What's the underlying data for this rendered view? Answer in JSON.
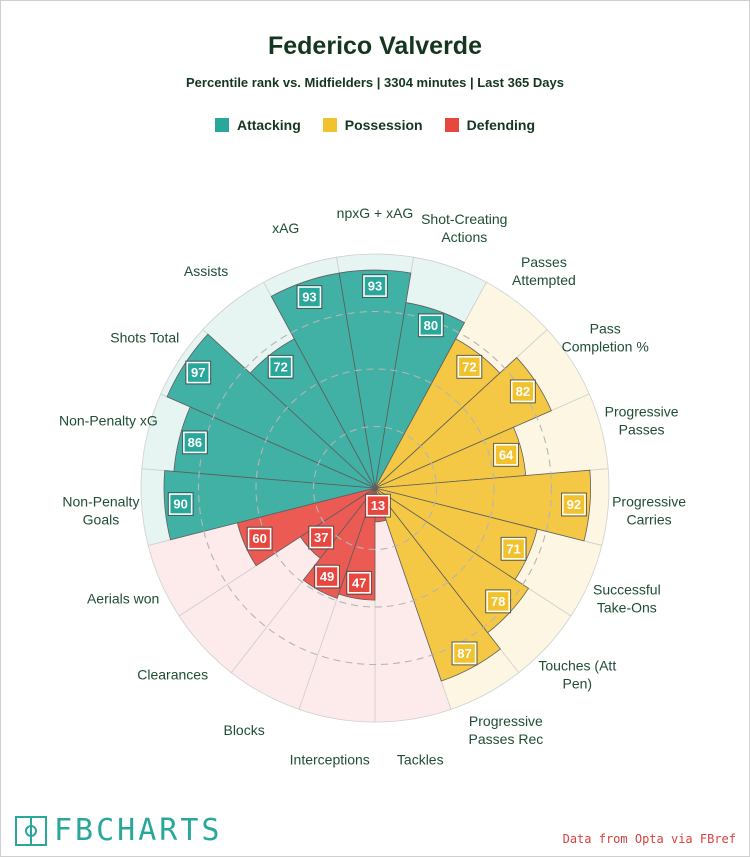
{
  "title": "Federico Valverde",
  "subtitle": "Percentile rank vs. Midfielders | 3304 minutes | Last 365 Days",
  "legend": [
    {
      "label": "Attacking",
      "color": "#2aa79b"
    },
    {
      "label": "Possession",
      "color": "#f2c12e"
    },
    {
      "label": "Defending",
      "color": "#e8473f"
    }
  ],
  "footer": {
    "brand": "FBCHARTS",
    "source": "Data from Opta via FBref"
  },
  "chart_data": {
    "type": "radar",
    "max_value": 100,
    "grid": true,
    "categories": {
      "Attacking": {
        "color": "#2aa79b",
        "background": "#e6f4f2"
      },
      "Possession": {
        "color": "#f2c12e",
        "background": "#fdf6e3"
      },
      "Defending": {
        "color": "#e8473f",
        "background": "#fcebea"
      }
    },
    "metrics": [
      {
        "label": "npxG + xAG",
        "value": 93,
        "category": "Attacking"
      },
      {
        "label": "Shot-Creating\nActions",
        "value": 80,
        "category": "Attacking"
      },
      {
        "label": "Passes\nAttempted",
        "value": 72,
        "category": "Possession"
      },
      {
        "label": "Pass\nCompletion %",
        "value": 82,
        "category": "Possession"
      },
      {
        "label": "Progressive\nPasses",
        "value": 64,
        "category": "Possession"
      },
      {
        "label": "Progressive\nCarries",
        "value": 92,
        "category": "Possession"
      },
      {
        "label": "Successful\nTake-Ons",
        "value": 71,
        "category": "Possession"
      },
      {
        "label": "Touches (Att\nPen)",
        "value": 78,
        "category": "Possession"
      },
      {
        "label": "Progressive\nPasses Rec",
        "value": 87,
        "category": "Possession"
      },
      {
        "label": "Tackles",
        "value": 13,
        "category": "Defending"
      },
      {
        "label": "Interceptions",
        "value": 47,
        "category": "Defending"
      },
      {
        "label": "Blocks",
        "value": 49,
        "category": "Defending"
      },
      {
        "label": "Clearances",
        "value": 37,
        "category": "Defending"
      },
      {
        "label": "Aerials won",
        "value": 60,
        "category": "Defending"
      },
      {
        "label": "Non-Penalty\nGoals",
        "value": 90,
        "category": "Attacking"
      },
      {
        "label": "Non-Penalty xG",
        "value": 86,
        "category": "Attacking"
      },
      {
        "label": "Shots Total",
        "value": 97,
        "category": "Attacking"
      },
      {
        "label": "Assists",
        "value": 72,
        "category": "Attacking"
      },
      {
        "label": "xAG",
        "value": 93,
        "category": "Attacking"
      }
    ]
  }
}
